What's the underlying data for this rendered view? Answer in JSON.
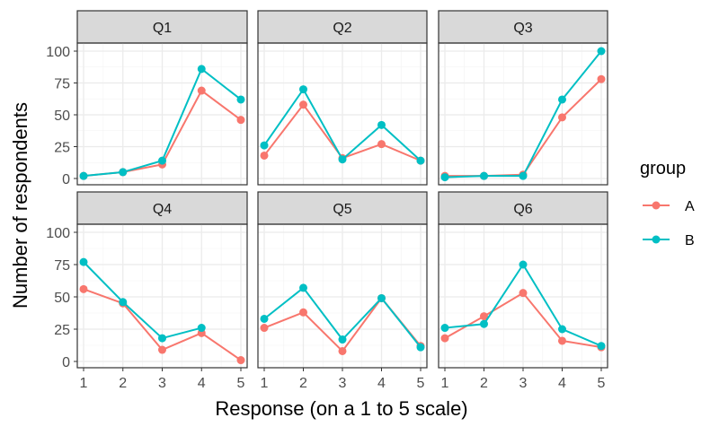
{
  "chart_data": {
    "type": "line",
    "facets": [
      "Q1",
      "Q2",
      "Q3",
      "Q4",
      "Q5",
      "Q6"
    ],
    "x": [
      1,
      2,
      3,
      4,
      5
    ],
    "xlabel": "Response (on a 1 to 5 scale)",
    "ylabel": "Number of respondents",
    "x_ticks": [
      "1",
      "2",
      "3",
      "4",
      "5"
    ],
    "y_ticks": [
      "0",
      "25",
      "50",
      "75",
      "100"
    ],
    "xlim": [
      1,
      5
    ],
    "ylim": [
      0,
      100
    ],
    "grid": true,
    "legend": {
      "title": "group",
      "placement": "right",
      "entries": [
        "A",
        "B"
      ]
    },
    "colors": {
      "A": "#F8766D",
      "B": "#00BFC4"
    },
    "panels": [
      {
        "name": "Q1",
        "series": [
          {
            "name": "A",
            "values": [
              2,
              5,
              11,
              69,
              46
            ]
          },
          {
            "name": "B",
            "values": [
              2,
              5,
              14,
              86,
              62
            ]
          }
        ]
      },
      {
        "name": "Q2",
        "series": [
          {
            "name": "A",
            "values": [
              18,
              58,
              16,
              27,
              14
            ]
          },
          {
            "name": "B",
            "values": [
              26,
              70,
              15,
              42,
              14
            ]
          }
        ]
      },
      {
        "name": "Q3",
        "series": [
          {
            "name": "A",
            "values": [
              2,
              2,
              3,
              48,
              78
            ]
          },
          {
            "name": "B",
            "values": [
              1,
              2,
              2,
              62,
              100
            ]
          }
        ]
      },
      {
        "name": "Q4",
        "series": [
          {
            "name": "A",
            "values": [
              56,
              45,
              9,
              22,
              1
            ]
          },
          {
            "name": "B",
            "values": [
              77,
              46,
              18,
              26,
              null
            ]
          }
        ]
      },
      {
        "name": "Q5",
        "series": [
          {
            "name": "A",
            "values": [
              26,
              38,
              8,
              49,
              12
            ]
          },
          {
            "name": "B",
            "values": [
              33,
              57,
              17,
              49,
              11
            ]
          }
        ]
      },
      {
        "name": "Q6",
        "series": [
          {
            "name": "A",
            "values": [
              18,
              35,
              53,
              16,
              11
            ]
          },
          {
            "name": "B",
            "values": [
              26,
              29,
              75,
              25,
              12
            ]
          }
        ]
      }
    ]
  }
}
